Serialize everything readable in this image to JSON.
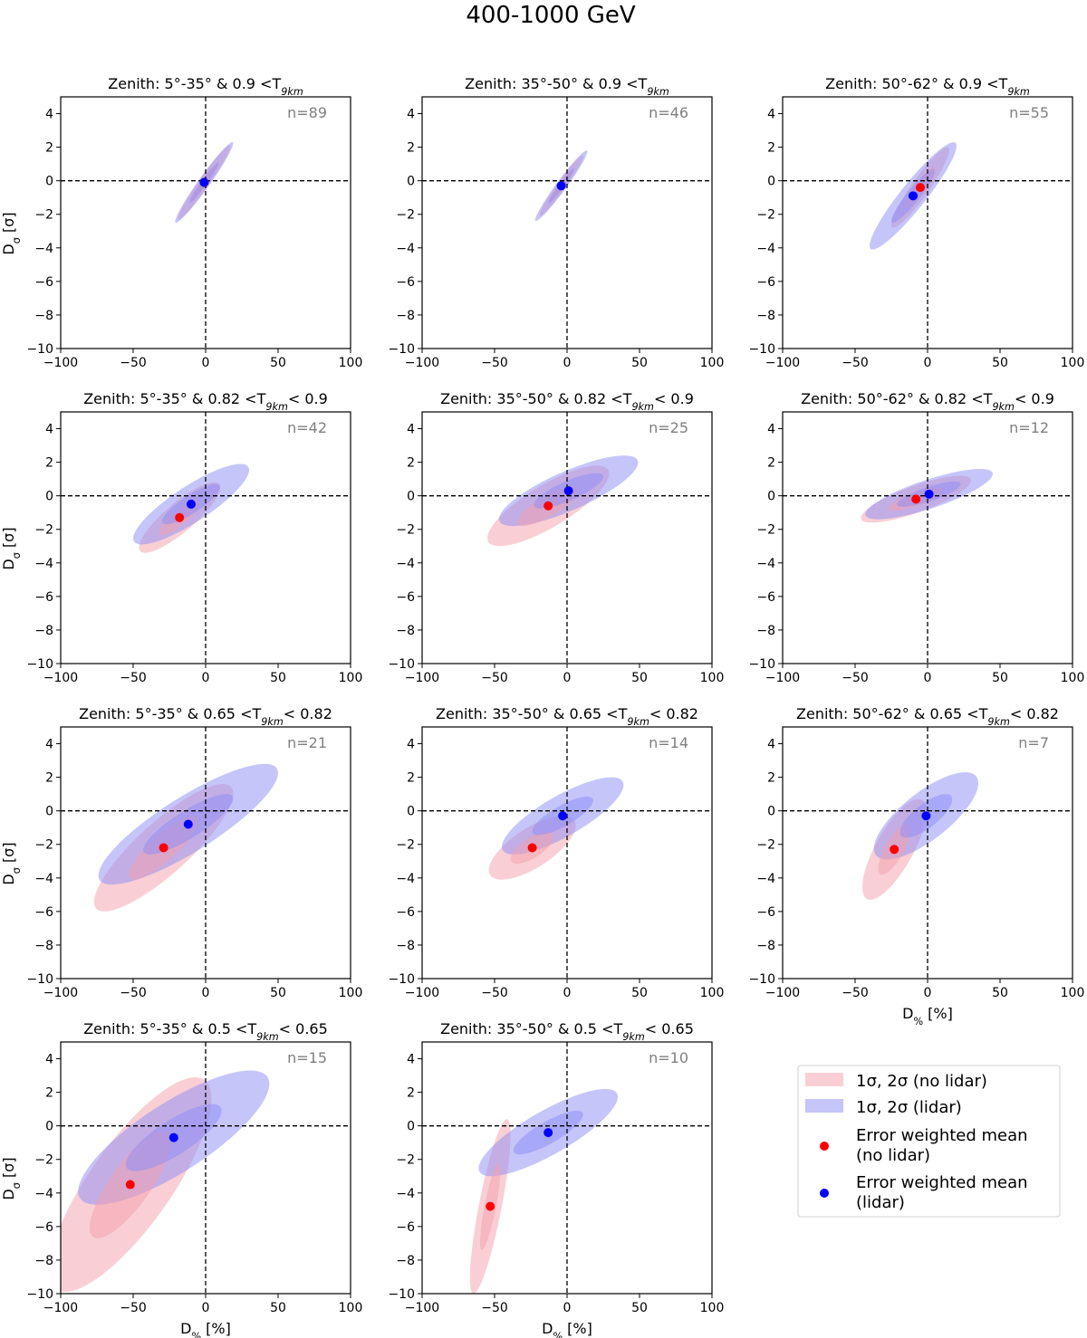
{
  "figure_title": "400-1000 GeV",
  "colors": {
    "no_lidar": "#f4a0ab",
    "lidar": "#8c8cf5",
    "mean_no_lidar": "#ff0000",
    "mean_lidar": "#0000ff",
    "n_label": "#808080"
  },
  "legend": {
    "items": [
      {
        "label": "1σ, 2σ (no lidar)",
        "kind": "band",
        "color": "#f4a0ab"
      },
      {
        "label": "1σ, 2σ (lidar)",
        "kind": "band",
        "color": "#8c8cf5"
      },
      {
        "label": "Error weighted mean",
        "label2": "(no lidar)",
        "kind": "point",
        "color": "#ff0000"
      },
      {
        "label": "Error weighted mean",
        "label2": "(lidar)",
        "kind": "point",
        "color": "#0000ff"
      }
    ]
  },
  "chart_data": [
    {
      "type": "scatter",
      "title": "Zenith: 5°-35° & 0.9 <T9km",
      "xlabel": "",
      "ylabel": "Dσ [σ]",
      "xlim": [
        -100,
        100
      ],
      "ylim": [
        -10,
        5
      ],
      "xticks": [
        -100,
        -50,
        0,
        50,
        100
      ],
      "yticks": [
        4,
        2,
        0,
        -2,
        -4,
        -6,
        -8,
        -10
      ],
      "n": "n=89",
      "no_lidar": {
        "mean": [
          -1,
          -0.1
        ],
        "sd": [
          9,
          1.1
        ],
        "corr": 0.97
      },
      "lidar": {
        "mean": [
          -1,
          -0.1
        ],
        "sd": [
          10,
          1.2
        ],
        "corr": 0.97
      }
    },
    {
      "type": "scatter",
      "title": "Zenith: 35°-50° & 0.9 <T9km",
      "xlabel": "",
      "ylabel": "",
      "xlim": [
        -100,
        100
      ],
      "ylim": [
        -10,
        5
      ],
      "xticks": [
        -100,
        -50,
        0,
        50,
        100
      ],
      "yticks": [
        4,
        2,
        0,
        -2,
        -4,
        -6,
        -8,
        -10
      ],
      "n": "n=46",
      "no_lidar": {
        "mean": [
          -4,
          -0.3
        ],
        "sd": [
          7.5,
          0.9
        ],
        "corr": 0.97
      },
      "lidar": {
        "mean": [
          -4,
          -0.3
        ],
        "sd": [
          9,
          1.05
        ],
        "corr": 0.97
      }
    },
    {
      "type": "scatter",
      "title": "Zenith: 50°-62° & 0.9 <T9km",
      "xlabel": "",
      "ylabel": "",
      "xlim": [
        -100,
        100
      ],
      "ylim": [
        -10,
        5
      ],
      "xticks": [
        -100,
        -50,
        0,
        50,
        100
      ],
      "yticks": [
        4,
        2,
        0,
        -2,
        -4,
        -6,
        -8,
        -10
      ],
      "n": "n=55",
      "no_lidar": {
        "mean": [
          -5,
          -0.4
        ],
        "sd": [
          10,
          1.2
        ],
        "corr": 0.93
      },
      "lidar": {
        "mean": [
          -10,
          -0.9
        ],
        "sd": [
          15,
          1.6
        ],
        "corr": 0.93
      }
    },
    {
      "type": "scatter",
      "title": "Zenith: 5°-35° & 0.82 <T9km< 0.9",
      "xlabel": "",
      "ylabel": "Dσ [σ]",
      "xlim": [
        -100,
        100
      ],
      "ylim": [
        -10,
        5
      ],
      "xticks": [
        -100,
        -50,
        0,
        50,
        100
      ],
      "yticks": [
        4,
        2,
        0,
        -2,
        -4,
        -6,
        -8,
        -10
      ],
      "n": "n=42",
      "no_lidar": {
        "mean": [
          -18,
          -1.3
        ],
        "sd": [
          14,
          1.05
        ],
        "corr": 0.85
      },
      "lidar": {
        "mean": [
          -10,
          -0.5
        ],
        "sd": [
          20,
          1.2
        ],
        "corr": 0.85
      }
    },
    {
      "type": "scatter",
      "title": "Zenith: 35°-50° & 0.82 <T9km< 0.9",
      "xlabel": "",
      "ylabel": "",
      "xlim": [
        -100,
        100
      ],
      "ylim": [
        -10,
        5
      ],
      "xticks": [
        -100,
        -50,
        0,
        50,
        100
      ],
      "yticks": [
        4,
        2,
        0,
        -2,
        -4,
        -6,
        -8,
        -10
      ],
      "n": "n=25",
      "no_lidar": {
        "mean": [
          -13,
          -0.6
        ],
        "sd": [
          21,
          1.2
        ],
        "corr": 0.8
      },
      "lidar": {
        "mean": [
          1,
          0.3
        ],
        "sd": [
          24,
          1.05
        ],
        "corr": 0.8
      }
    },
    {
      "type": "scatter",
      "title": "Zenith: 50°-62° & 0.82 <T9km< 0.9",
      "xlabel": "",
      "ylabel": "",
      "xlim": [
        -100,
        100
      ],
      "ylim": [
        -10,
        5
      ],
      "xticks": [
        -100,
        -50,
        0,
        50,
        100
      ],
      "yticks": [
        4,
        2,
        0,
        -2,
        -4,
        -6,
        -8,
        -10
      ],
      "n": "n=12",
      "no_lidar": {
        "mean": [
          -8,
          -0.2
        ],
        "sd": [
          19,
          0.7
        ],
        "corr": 0.8
      },
      "lidar": {
        "mean": [
          1,
          0.1
        ],
        "sd": [
          22,
          0.75
        ],
        "corr": 0.8
      }
    },
    {
      "type": "scatter",
      "title": "Zenith: 5°-35° & 0.65 <T9km< 0.82",
      "xlabel": "",
      "ylabel": "Dσ [σ]",
      "xlim": [
        -100,
        100
      ],
      "ylim": [
        -10,
        5
      ],
      "xticks": [
        -100,
        -50,
        0,
        50,
        100
      ],
      "yticks": [
        4,
        2,
        0,
        -2,
        -4,
        -6,
        -8,
        -10
      ],
      "n": "n=21",
      "no_lidar": {
        "mean": [
          -29,
          -2.2
        ],
        "sd": [
          24,
          1.9
        ],
        "corr": 0.85
      },
      "lidar": {
        "mean": [
          -12,
          -0.8
        ],
        "sd": [
          31,
          1.8
        ],
        "corr": 0.85
      }
    },
    {
      "type": "scatter",
      "title": "Zenith: 35°-50° & 0.65 <T9km< 0.82",
      "xlabel": "",
      "ylabel": "",
      "xlim": [
        -100,
        100
      ],
      "ylim": [
        -10,
        5
      ],
      "xticks": [
        -100,
        -50,
        0,
        50,
        100
      ],
      "yticks": [
        4,
        2,
        0,
        -2,
        -4,
        -6,
        -8,
        -10
      ],
      "n": "n=14",
      "no_lidar": {
        "mean": [
          -24,
          -2.2
        ],
        "sd": [
          15,
          0.95
        ],
        "corr": 0.7
      },
      "lidar": {
        "mean": [
          -3,
          -0.3
        ],
        "sd": [
          21,
          1.15
        ],
        "corr": 0.8
      }
    },
    {
      "type": "scatter",
      "title": "Zenith: 50°-62° & 0.65 <T9km< 0.82",
      "xlabel": "D% [%]",
      "ylabel": "",
      "xlim": [
        -100,
        100
      ],
      "ylim": [
        -10,
        5
      ],
      "xticks": [
        -100,
        -50,
        0,
        50,
        100
      ],
      "yticks": [
        4,
        2,
        0,
        -2,
        -4,
        -6,
        -8,
        -10
      ],
      "n": "n=7",
      "no_lidar": {
        "mean": [
          -23,
          -2.3
        ],
        "sd": [
          11,
          1.5
        ],
        "corr": 0.75
      },
      "lidar": {
        "mean": [
          -1,
          -0.3
        ],
        "sd": [
          18,
          1.3
        ],
        "corr": 0.75
      }
    },
    {
      "type": "scatter",
      "title": "Zenith: 5°-35° & 0.5 <T9km< 0.65",
      "xlabel": "D% [%]",
      "ylabel": "Dσ [σ]",
      "xlim": [
        -100,
        100
      ],
      "ylim": [
        -10,
        5
      ],
      "xticks": [
        -100,
        -50,
        0,
        50,
        100
      ],
      "yticks": [
        4,
        2,
        0,
        -2,
        -4,
        -6,
        -8,
        -10
      ],
      "n": "n=15",
      "no_lidar": {
        "mean": [
          -52,
          -3.5
        ],
        "sd": [
          28,
          3.2
        ],
        "corr": 0.8
      },
      "lidar": {
        "mean": [
          -22,
          -0.7
        ],
        "sd": [
          33,
          2.0
        ],
        "corr": 0.8
      }
    },
    {
      "type": "scatter",
      "title": "Zenith: 35°-50° & 0.5 <T9km< 0.65",
      "xlabel": "D% [%]",
      "ylabel": "",
      "xlim": [
        -100,
        100
      ],
      "ylim": [
        -10,
        5
      ],
      "xticks": [
        -100,
        -50,
        0,
        50,
        100
      ],
      "yticks": [
        4,
        2,
        0,
        -2,
        -4,
        -6,
        -8,
        -10
      ],
      "n": "n=10",
      "no_lidar": {
        "mean": [
          -53,
          -4.8
        ],
        "sd": [
          7,
          2.6
        ],
        "corr": 0.82
      },
      "lidar": {
        "mean": [
          -13,
          -0.4
        ],
        "sd": [
          24,
          1.3
        ],
        "corr": 0.82
      }
    }
  ]
}
